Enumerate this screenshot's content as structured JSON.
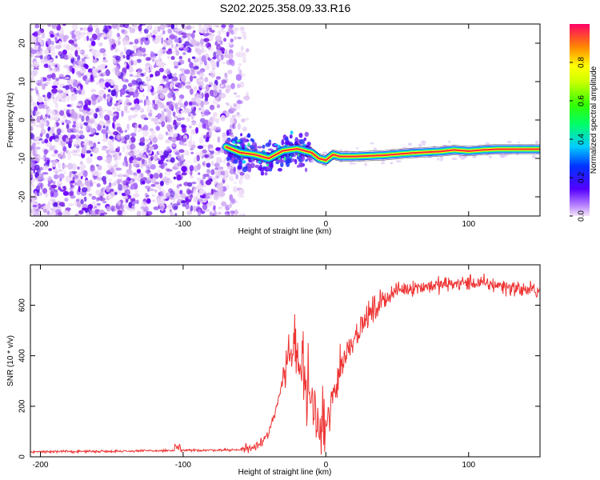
{
  "title": "S202.2025.358.09.33.R16",
  "chart_data": [
    {
      "type": "heatmap",
      "title": "S202.2025.358.09.33.R16",
      "xlabel": "Height of straight line (km)",
      "ylabel": "Frequency (Hz)",
      "xlim": [
        -207,
        150
      ],
      "ylim": [
        -25,
        25
      ],
      "xticks": [
        -200,
        -100,
        0,
        100
      ],
      "yticks": [
        -20,
        -10,
        0,
        10,
        20
      ],
      "tone_line": {
        "x": [
          -70,
          -60,
          -50,
          -40,
          -30,
          -20,
          -15,
          -10,
          -5,
          0,
          5,
          10,
          20,
          40,
          60,
          80,
          90,
          100,
          110,
          120,
          150
        ],
        "y": [
          -7,
          -8.5,
          -9,
          -10,
          -8,
          -7.5,
          -8,
          -8.5,
          -10,
          -10.5,
          -9,
          -9.5,
          -9.5,
          -9.2,
          -8.6,
          -8.2,
          -7.8,
          -8.1,
          -7.8,
          -7.6,
          -7.6
        ]
      },
      "colorbar": {
        "label": "Normalized spectral amplitude",
        "range": [
          0.0,
          1.0
        ],
        "ticks": [
          "0.0",
          "0.2",
          "0.4",
          "0.6",
          "0.8"
        ]
      }
    },
    {
      "type": "line",
      "xlabel": "Height of straight line (km)",
      "ylabel": "SNR (10 * v/v)",
      "xlim": [
        -207,
        150
      ],
      "ylim": [
        0,
        760
      ],
      "xticks": [
        -200,
        -100,
        0,
        100
      ],
      "yticks": [
        0,
        200,
        400,
        600
      ],
      "series": [
        {
          "name": "SNR",
          "color": "#ee3333",
          "x": [
            -207,
            -150,
            -100,
            -60,
            -50,
            -40,
            -35,
            -30,
            -25,
            -20,
            -15,
            -10,
            -5,
            0,
            5,
            10,
            15,
            20,
            30,
            40,
            50,
            60,
            80,
            100,
            120,
            140,
            150
          ],
          "y": [
            20,
            22,
            25,
            28,
            40,
            90,
            180,
            320,
            420,
            380,
            300,
            200,
            120,
            80,
            250,
            350,
            420,
            480,
            560,
            620,
            660,
            670,
            680,
            690,
            680,
            660,
            660
          ]
        }
      ]
    }
  ]
}
